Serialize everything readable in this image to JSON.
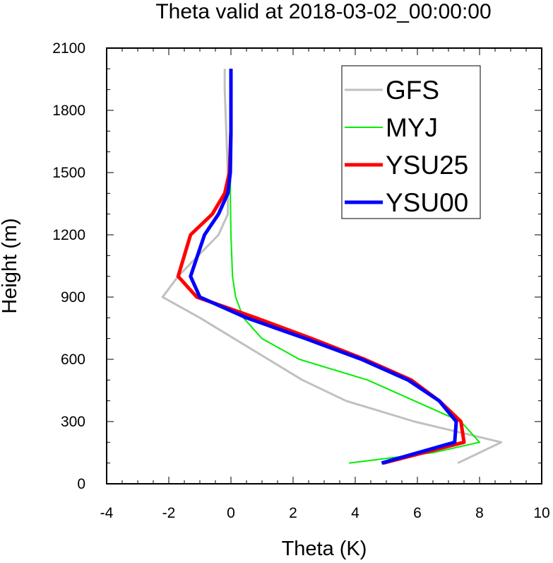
{
  "chart_data": {
    "type": "line",
    "title": "Theta valid at 2018-03-02_00:00:00",
    "xlabel": "Theta (K)",
    "ylabel": "Height (m)",
    "xlim": [
      -4,
      10
    ],
    "ylim": [
      0,
      2100
    ],
    "xticks": [
      "-4",
      "-2",
      "0",
      "2",
      "4",
      "6",
      "8",
      "10"
    ],
    "yticks": [
      "0",
      "300",
      "600",
      "900",
      "1200",
      "1500",
      "1800",
      "2100"
    ],
    "xtick_values": [
      -4,
      -2,
      0,
      2,
      4,
      6,
      8,
      10
    ],
    "ytick_values": [
      0,
      300,
      600,
      900,
      1200,
      1500,
      1800,
      2100
    ],
    "grid": false,
    "legend_position": "top-right",
    "series": [
      {
        "name": "GFS",
        "color": "#c0c0c0",
        "width": 3,
        "points": [
          [
            7.3,
            100
          ],
          [
            8.7,
            200
          ],
          [
            5.9,
            300
          ],
          [
            3.7,
            400
          ],
          [
            2.3,
            500
          ],
          [
            1.2,
            600
          ],
          [
            0.1,
            700
          ],
          [
            -1.0,
            800
          ],
          [
            -2.2,
            900
          ],
          [
            -1.7,
            1000
          ],
          [
            -0.4,
            1200
          ],
          [
            -0.1,
            1300
          ],
          [
            -0.1,
            1500
          ],
          [
            -0.15,
            1700
          ],
          [
            -0.2,
            1900
          ],
          [
            -0.2,
            2000
          ]
        ]
      },
      {
        "name": "MYJ",
        "color": "#00ee00",
        "width": 2,
        "points": [
          [
            3.8,
            100
          ],
          [
            6.5,
            150
          ],
          [
            8.0,
            200
          ],
          [
            7.4,
            300
          ],
          [
            5.9,
            400
          ],
          [
            4.4,
            500
          ],
          [
            2.2,
            600
          ],
          [
            1.0,
            700
          ],
          [
            0.4,
            800
          ],
          [
            0.15,
            900
          ],
          [
            0.05,
            1000
          ],
          [
            0.0,
            1200
          ],
          [
            -0.02,
            1400
          ],
          [
            0.0,
            1600
          ],
          [
            0.0,
            1800
          ],
          [
            0.0,
            2000
          ]
        ]
      },
      {
        "name": "YSU25",
        "color": "#ff0000",
        "width": 5,
        "points": [
          [
            4.9,
            100
          ],
          [
            7.5,
            200
          ],
          [
            7.4,
            300
          ],
          [
            6.7,
            400
          ],
          [
            5.8,
            500
          ],
          [
            4.3,
            600
          ],
          [
            2.6,
            700
          ],
          [
            0.8,
            800
          ],
          [
            -1.1,
            900
          ],
          [
            -1.7,
            1000
          ],
          [
            -1.3,
            1200
          ],
          [
            -0.6,
            1300
          ],
          [
            -0.2,
            1400
          ],
          [
            -0.05,
            1500
          ],
          [
            0.0,
            1700
          ],
          [
            0.0,
            2000
          ]
        ]
      },
      {
        "name": "YSU00",
        "color": "#0000ff",
        "width": 5,
        "points": [
          [
            4.85,
            100
          ],
          [
            7.2,
            200
          ],
          [
            7.25,
            300
          ],
          [
            6.7,
            400
          ],
          [
            5.7,
            500
          ],
          [
            4.2,
            600
          ],
          [
            2.4,
            700
          ],
          [
            0.5,
            800
          ],
          [
            -1.0,
            900
          ],
          [
            -1.3,
            1000
          ],
          [
            -0.85,
            1200
          ],
          [
            -0.4,
            1300
          ],
          [
            -0.1,
            1400
          ],
          [
            -0.02,
            1500
          ],
          [
            0.0,
            1700
          ],
          [
            0.0,
            2000
          ]
        ]
      }
    ]
  }
}
